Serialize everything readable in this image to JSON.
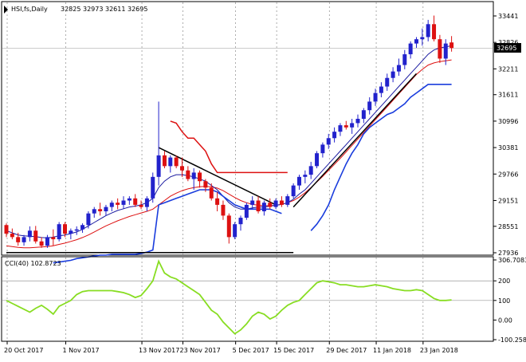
{
  "header": {
    "symbol": "HSI,fs,Daily",
    "ohlc": "32825 32973 32611 32695"
  },
  "price_axis": {
    "ticks": [
      "33441",
      "32826",
      "32211",
      "31611",
      "30996",
      "30381",
      "29766",
      "29151",
      "28551",
      "27936"
    ],
    "current": "32695"
  },
  "cci_panel": {
    "label": "CCI(40) 102.8723",
    "ticks": [
      "306.7083",
      "200",
      "100",
      "0.00",
      "-100.258"
    ]
  },
  "time_axis": {
    "labels": [
      "20 Oct 2017",
      "1 Nov 2017",
      "13 Nov 2017",
      "23 Nov 2017",
      "5 Dec 2017",
      "15 Dec 2017",
      "29 Dec 2017",
      "11 Jan 2018",
      "23 Jan 2018"
    ]
  },
  "colors": {
    "up": "#2222cc",
    "down": "#dd1111",
    "ma_fast": "#1a1aa0",
    "ma_slow": "#dd1111",
    "band_low": "#1a3ddd",
    "stop": "#dd1111",
    "cci": "#88dd22",
    "grid": "#777777"
  },
  "chart_data": {
    "type": "candlestick",
    "title": "HSI,fs,Daily",
    "ylim": [
      27936,
      33441
    ],
    "candles": [
      [
        28580,
        28620,
        28300,
        28380
      ],
      [
        28380,
        28500,
        28250,
        28300
      ],
      [
        28300,
        28400,
        28100,
        28180
      ],
      [
        28180,
        28350,
        28100,
        28300
      ],
      [
        28300,
        28550,
        28200,
        28450
      ],
      [
        28450,
        28560,
        28150,
        28200
      ],
      [
        28200,
        28300,
        28050,
        28100
      ],
      [
        28100,
        28350,
        28050,
        28300
      ],
      [
        28300,
        28480,
        28100,
        28250
      ],
      [
        28250,
        28650,
        28200,
        28600
      ],
      [
        28600,
        28650,
        28300,
        28380
      ],
      [
        28380,
        28500,
        28250,
        28450
      ],
      [
        28450,
        28550,
        28350,
        28480
      ],
      [
        28480,
        28620,
        28400,
        28580
      ],
      [
        28580,
        28900,
        28500,
        28850
      ],
      [
        28850,
        29000,
        28750,
        28950
      ],
      [
        28950,
        29100,
        28800,
        28900
      ],
      [
        28900,
        29050,
        28800,
        29000
      ],
      [
        29000,
        29150,
        28900,
        29100
      ],
      [
        29100,
        29200,
        28950,
        29050
      ],
      [
        29050,
        29250,
        28950,
        29150
      ],
      [
        29150,
        29250,
        29050,
        29200
      ],
      [
        29200,
        29300,
        29000,
        29050
      ],
      [
        29050,
        29150,
        28950,
        29000
      ],
      [
        29000,
        29250,
        28900,
        29200
      ],
      [
        29200,
        29800,
        29100,
        29700
      ],
      [
        29700,
        31450,
        29500,
        30200
      ],
      [
        30200,
        30300,
        29900,
        29950
      ],
      [
        29950,
        30200,
        29800,
        30150
      ],
      [
        30150,
        30200,
        29900,
        29950
      ],
      [
        29950,
        30150,
        29700,
        29850
      ],
      [
        29850,
        29950,
        29600,
        29650
      ],
      [
        29650,
        29900,
        29400,
        29800
      ],
      [
        29800,
        29850,
        29450,
        29600
      ],
      [
        29600,
        29650,
        29350,
        29450
      ],
      [
        29450,
        29550,
        29150,
        29200
      ],
      [
        29200,
        29350,
        28900,
        29050
      ],
      [
        29050,
        29150,
        28700,
        28800
      ],
      [
        28800,
        28850,
        28150,
        28300
      ],
      [
        28300,
        28650,
        28250,
        28600
      ],
      [
        28600,
        28800,
        28450,
        28750
      ],
      [
        28750,
        29100,
        28700,
        29050
      ],
      [
        29050,
        29250,
        28950,
        29150
      ],
      [
        29150,
        29250,
        28850,
        28900
      ],
      [
        28900,
        29150,
        28800,
        29100
      ],
      [
        29100,
        29200,
        28950,
        29000
      ],
      [
        29000,
        29200,
        28950,
        29150
      ],
      [
        29150,
        29250,
        29000,
        29050
      ],
      [
        29050,
        29300,
        29000,
        29250
      ],
      [
        29250,
        29550,
        29200,
        29500
      ],
      [
        29500,
        29750,
        29400,
        29700
      ],
      [
        29700,
        29850,
        29550,
        29750
      ],
      [
        29750,
        30050,
        29650,
        29950
      ],
      [
        29950,
        30300,
        29900,
        30250
      ],
      [
        30250,
        30500,
        30150,
        30450
      ],
      [
        30450,
        30700,
        30350,
        30600
      ],
      [
        30600,
        30850,
        30500,
        30750
      ],
      [
        30750,
        30950,
        30650,
        30900
      ],
      [
        30900,
        31000,
        30800,
        30850
      ],
      [
        30850,
        31050,
        30700,
        30950
      ],
      [
        30950,
        31150,
        30850,
        31050
      ],
      [
        31050,
        31300,
        30950,
        31250
      ],
      [
        31250,
        31550,
        31150,
        31450
      ],
      [
        31450,
        31750,
        31350,
        31650
      ],
      [
        31650,
        31900,
        31550,
        31800
      ],
      [
        31800,
        32100,
        31700,
        32000
      ],
      [
        32000,
        32250,
        31900,
        32150
      ],
      [
        32150,
        32450,
        32050,
        32300
      ],
      [
        32300,
        32650,
        32200,
        32550
      ],
      [
        32550,
        32850,
        32450,
        32800
      ],
      [
        32800,
        32950,
        32700,
        32900
      ],
      [
        32900,
        33150,
        32750,
        32950
      ],
      [
        32950,
        33350,
        32850,
        33250
      ],
      [
        33250,
        33450,
        32850,
        32900
      ],
      [
        32900,
        33000,
        32350,
        32450
      ],
      [
        32450,
        32900,
        32300,
        32800
      ],
      [
        32825,
        32973,
        32611,
        32695
      ]
    ],
    "ma_fast": [
      28450,
      28400,
      28350,
      28330,
      28320,
      28310,
      28290,
      28280,
      28300,
      28330,
      28350,
      28380,
      28420,
      28480,
      28560,
      28640,
      28720,
      28800,
      28860,
      28920,
      28960,
      29000,
      29020,
      29050,
      29100,
      29200,
      29450,
      29600,
      29700,
      29750,
      29750,
      29730,
      29700,
      29650,
      29600,
      29500,
      29400,
      29250,
      29100,
      29000,
      28950,
      28950,
      28980,
      29000,
      29000,
      29020,
      29040,
      29060,
      29100,
      29180,
      29300,
      29400,
      29550,
      29700,
      29850,
      30000,
      30150,
      30300,
      30450,
      30600,
      30750,
      30900,
      31050,
      31200,
      31350,
      31500,
      31650,
      31800,
      31950,
      32100,
      32250,
      32400,
      32550,
      32650,
      32700,
      32720,
      32750
    ],
    "ma_slow": [
      28100,
      28080,
      28060,
      28050,
      28050,
      28060,
      28070,
      28080,
      28100,
      28130,
      28160,
      28200,
      28240,
      28290,
      28350,
      28420,
      28490,
      28560,
      28620,
      28680,
      28730,
      28780,
      28820,
      28860,
      28900,
      28950,
      29050,
      29150,
      29250,
      29320,
      29380,
      29420,
      29450,
      29470,
      29480,
      29470,
      29440,
      29380,
      29300,
      29220,
      29150,
      29100,
      29060,
      29040,
      29030,
      29030,
      29040,
      29060,
      29100,
      29150,
      29230,
      29330,
      29450,
      29580,
      29710,
      29850,
      29990,
      30130,
      30280,
      30430,
      30580,
      30730,
      30880,
      31030,
      31180,
      31330,
      31480,
      31630,
      31780,
      31930,
      32080,
      32200,
      32300,
      32350,
      32380,
      32400,
      32420
    ],
    "band_low": [
      null,
      null,
      null,
      null,
      null,
      null,
      null,
      null,
      27700,
      27720,
      27740,
      27760,
      27800,
      27820,
      27840,
      27860,
      27880,
      27880,
      27900,
      27900,
      27900,
      27900,
      27900,
      27920,
      27950,
      28000,
      29050,
      29100,
      29150,
      29200,
      29250,
      29300,
      29350,
      29400,
      29400,
      29400,
      29350,
      29250,
      29150,
      29050,
      29000,
      28950,
      28950,
      28950,
      28950,
      28950,
      28900,
      28850,
      null,
      null,
      null,
      null,
      28450,
      28600,
      28800,
      29050,
      29400,
      29700,
      30000,
      30250,
      30450,
      30700,
      30850,
      30950,
      31050,
      31150,
      31200,
      31300,
      31400,
      31550,
      31650,
      31750,
      31850,
      31850,
      31850,
      31850,
      31850
    ],
    "trendlines": [
      {
        "from": [
          26,
          30381
        ],
        "to": [
          46,
          29050
        ]
      },
      {
        "from": [
          49,
          29000
        ],
        "to": [
          70,
          32100
        ]
      },
      {
        "from": [
          0,
          27940
        ],
        "to": [
          49,
          27940
        ]
      }
    ],
    "stop_line": [
      [
        28,
        30996
      ],
      [
        29,
        30950
      ],
      [
        30,
        30750
      ],
      [
        31,
        30600
      ],
      [
        32,
        30600
      ],
      [
        33,
        30450
      ],
      [
        34,
        30300
      ],
      [
        35,
        30000
      ],
      [
        36,
        29800
      ],
      [
        37,
        29800
      ],
      [
        38,
        29800
      ],
      [
        39,
        29800
      ],
      [
        40,
        29800
      ],
      [
        41,
        29800
      ],
      [
        42,
        29800
      ],
      [
        43,
        29800
      ],
      [
        44,
        29800
      ],
      [
        45,
        29800
      ],
      [
        46,
        29800
      ],
      [
        47,
        29800
      ],
      [
        48,
        29800
      ]
    ],
    "cci": {
      "name": "CCI(40)",
      "ylim": [
        -100.258,
        306.7083
      ],
      "levels": [
        200,
        100
      ],
      "values": [
        100,
        85,
        70,
        55,
        40,
        60,
        75,
        55,
        30,
        70,
        85,
        100,
        130,
        145,
        150,
        150,
        150,
        150,
        150,
        145,
        140,
        130,
        115,
        125,
        160,
        200,
        300,
        240,
        220,
        210,
        190,
        170,
        150,
        130,
        90,
        50,
        30,
        -10,
        -40,
        -70,
        -50,
        -20,
        20,
        40,
        30,
        5,
        20,
        50,
        75,
        90,
        100,
        130,
        160,
        190,
        200,
        195,
        190,
        180,
        180,
        175,
        170,
        170,
        175,
        180,
        175,
        170,
        160,
        155,
        150,
        150,
        155,
        150,
        130,
        110,
        100,
        100,
        103
      ]
    }
  }
}
